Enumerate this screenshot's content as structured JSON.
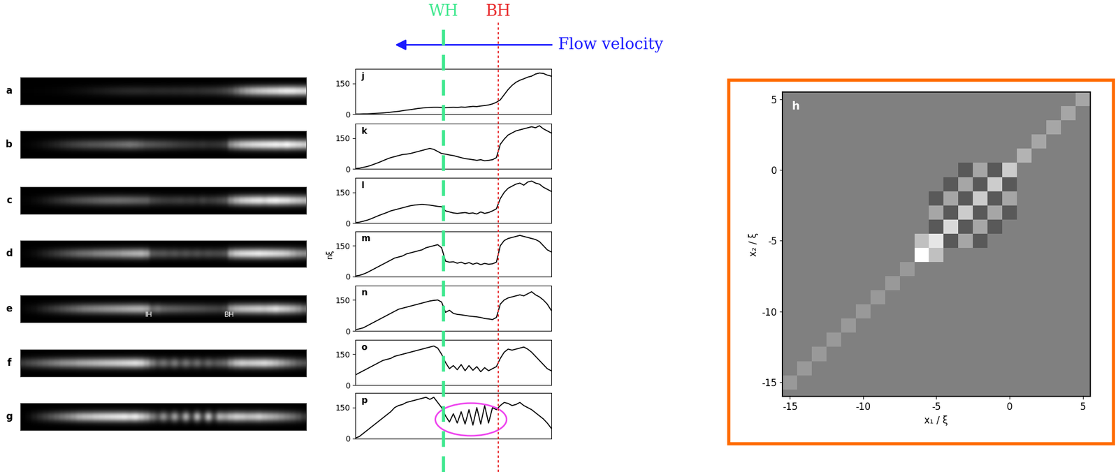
{
  "horizons": [
    {
      "text": "WH",
      "x": 45,
      "color": "#3ee88e",
      "line_style": "dashed"
    },
    {
      "text": "BH",
      "x": 73,
      "color": "#e8282a",
      "line_style": "dotted"
    }
  ],
  "flow": {
    "text": "Flow velocity",
    "color": "#1a1aff"
  },
  "images": {
    "labels": [
      "a",
      "b",
      "c",
      "d",
      "e",
      "f",
      "g"
    ],
    "notes_panel": "e",
    "notes": [
      "IH",
      "BH"
    ]
  },
  "highlight": {
    "panel": "p",
    "color": "#ee44ee"
  },
  "chart_data": [
    {
      "type": "line",
      "title": "j",
      "color": "#000000",
      "tick_labels": "y",
      "x": [
        0,
        2,
        4,
        6,
        8,
        10,
        12,
        14,
        16,
        18,
        20,
        22,
        24,
        26,
        28,
        30,
        32,
        34,
        36,
        38,
        40,
        42,
        44,
        46,
        48,
        50,
        52,
        54,
        56,
        58,
        60,
        62,
        64,
        66,
        68,
        70,
        72,
        74,
        76,
        78,
        80,
        82,
        84,
        86,
        88,
        90,
        92,
        94,
        96,
        98,
        100
      ],
      "values": [
        1,
        1,
        2,
        2,
        3,
        4,
        5,
        6,
        8,
        10,
        12,
        14,
        17,
        20,
        22,
        25,
        28,
        30,
        32,
        33,
        34,
        34,
        33,
        32,
        33,
        34,
        33,
        35,
        34,
        36,
        38,
        37,
        40,
        42,
        45,
        50,
        58,
        70,
        95,
        120,
        140,
        155,
        165,
        172,
        180,
        185,
        195,
        200,
        198,
        190,
        185
      ],
      "xlim": [
        0,
        100
      ],
      "ylim": [
        0,
        220
      ],
      "yticks": [
        0,
        150
      ]
    },
    {
      "type": "line",
      "title": "k",
      "color": "#000000",
      "tick_labels": "y",
      "x": [
        0,
        2,
        4,
        6,
        8,
        10,
        12,
        14,
        16,
        18,
        20,
        22,
        24,
        26,
        28,
        30,
        32,
        34,
        36,
        38,
        40,
        42,
        44,
        46,
        48,
        50,
        52,
        54,
        56,
        58,
        60,
        62,
        64,
        66,
        68,
        70,
        72,
        74,
        76,
        78,
        80,
        82,
        84,
        86,
        88,
        90,
        92,
        94,
        96,
        98,
        100
      ],
      "values": [
        2,
        4,
        8,
        12,
        18,
        25,
        32,
        40,
        48,
        55,
        60,
        65,
        70,
        72,
        75,
        80,
        85,
        90,
        95,
        100,
        95,
        85,
        75,
        72,
        68,
        65,
        60,
        55,
        50,
        48,
        45,
        42,
        45,
        40,
        42,
        45,
        55,
        120,
        145,
        165,
        175,
        185,
        190,
        195,
        200,
        205,
        200,
        210,
        195,
        185,
        175
      ],
      "xlim": [
        0,
        100
      ],
      "ylim": [
        0,
        220
      ],
      "yticks": [
        0,
        150
      ]
    },
    {
      "type": "line",
      "title": "l",
      "color": "#000000",
      "tick_labels": "y",
      "x": [
        0,
        2,
        4,
        6,
        8,
        10,
        12,
        14,
        16,
        18,
        20,
        22,
        24,
        26,
        28,
        30,
        32,
        34,
        36,
        38,
        40,
        42,
        44,
        46,
        48,
        50,
        52,
        54,
        56,
        58,
        60,
        62,
        64,
        66,
        68,
        70,
        72,
        74,
        76,
        78,
        80,
        82,
        84,
        86,
        88,
        90,
        92,
        94,
        96,
        98,
        100
      ],
      "values": [
        3,
        5,
        10,
        15,
        22,
        30,
        38,
        45,
        52,
        60,
        65,
        70,
        75,
        80,
        85,
        88,
        90,
        92,
        90,
        88,
        85,
        82,
        80,
        60,
        55,
        50,
        48,
        50,
        52,
        48,
        50,
        45,
        55,
        48,
        52,
        60,
        70,
        120,
        150,
        170,
        180,
        190,
        195,
        185,
        200,
        205,
        195,
        190,
        175,
        165,
        155
      ],
      "xlim": [
        0,
        100
      ],
      "ylim": [
        0,
        220
      ],
      "yticks": [
        0,
        150
      ]
    },
    {
      "type": "line",
      "title": "m",
      "color": "#000000",
      "tick_labels": "y",
      "y_label": "nξ",
      "x": [
        0,
        2,
        4,
        6,
        8,
        10,
        12,
        14,
        16,
        18,
        20,
        22,
        24,
        26,
        28,
        30,
        32,
        34,
        36,
        38,
        40,
        42,
        44,
        46,
        48,
        50,
        52,
        54,
        56,
        58,
        60,
        62,
        64,
        66,
        68,
        70,
        72,
        74,
        76,
        78,
        80,
        82,
        84,
        86,
        88,
        90,
        92,
        94,
        96,
        98,
        100
      ],
      "values": [
        3,
        6,
        12,
        20,
        30,
        40,
        50,
        60,
        70,
        80,
        90,
        95,
        100,
        110,
        115,
        120,
        125,
        130,
        140,
        145,
        150,
        155,
        140,
        75,
        70,
        72,
        65,
        70,
        62,
        68,
        60,
        66,
        58,
        64,
        60,
        62,
        70,
        150,
        175,
        185,
        190,
        195,
        200,
        195,
        190,
        185,
        180,
        170,
        150,
        130,
        120
      ],
      "xlim": [
        0,
        100
      ],
      "ylim": [
        0,
        220
      ],
      "yticks": [
        0,
        150
      ]
    },
    {
      "type": "line",
      "title": "n",
      "color": "#000000",
      "tick_labels": "y",
      "x": [
        0,
        2,
        4,
        6,
        8,
        10,
        12,
        14,
        16,
        18,
        20,
        22,
        24,
        26,
        28,
        30,
        32,
        34,
        36,
        38,
        40,
        42,
        44,
        46,
        48,
        50,
        52,
        54,
        56,
        58,
        60,
        62,
        64,
        66,
        68,
        70,
        72,
        74,
        76,
        78,
        80,
        82,
        84,
        86,
        88,
        90,
        92,
        94,
        96,
        98,
        100
      ],
      "values": [
        5,
        10,
        15,
        25,
        35,
        45,
        55,
        65,
        75,
        85,
        95,
        105,
        110,
        115,
        120,
        125,
        130,
        135,
        140,
        145,
        148,
        150,
        140,
        90,
        100,
        85,
        80,
        78,
        75,
        72,
        70,
        68,
        65,
        60,
        58,
        55,
        65,
        130,
        150,
        160,
        165,
        170,
        175,
        170,
        180,
        190,
        175,
        165,
        150,
        130,
        100
      ],
      "xlim": [
        0,
        100
      ],
      "ylim": [
        0,
        220
      ],
      "yticks": [
        0,
        150
      ]
    },
    {
      "type": "line",
      "title": "o",
      "color": "#000000",
      "tick_labels": "y",
      "x": [
        0,
        2,
        4,
        6,
        8,
        10,
        12,
        14,
        16,
        18,
        20,
        22,
        24,
        26,
        28,
        30,
        32,
        34,
        36,
        38,
        40,
        42,
        44,
        46,
        48,
        50,
        52,
        54,
        56,
        58,
        60,
        62,
        64,
        66,
        68,
        70,
        72,
        74,
        76,
        78,
        80,
        82,
        84,
        86,
        88,
        90,
        92,
        94,
        96,
        98,
        100
      ],
      "values": [
        50,
        60,
        70,
        80,
        90,
        100,
        110,
        120,
        125,
        130,
        140,
        145,
        150,
        155,
        160,
        165,
        170,
        175,
        180,
        185,
        190,
        180,
        150,
        110,
        80,
        95,
        75,
        100,
        70,
        95,
        72,
        90,
        65,
        85,
        70,
        80,
        90,
        130,
        160,
        175,
        170,
        175,
        180,
        185,
        175,
        160,
        140,
        120,
        100,
        80,
        70
      ],
      "xlim": [
        0,
        100
      ],
      "ylim": [
        0,
        220
      ],
      "yticks": [
        0,
        150
      ]
    },
    {
      "type": "line",
      "title": "p",
      "color": "#000000",
      "tick_labels": "y",
      "x": [
        0,
        2,
        4,
        6,
        8,
        10,
        12,
        14,
        16,
        18,
        20,
        22,
        24,
        26,
        28,
        30,
        32,
        34,
        36,
        38,
        40,
        42,
        44,
        46,
        48,
        50,
        52,
        54,
        56,
        58,
        60,
        62,
        64,
        66,
        68,
        70,
        72,
        74,
        76,
        78,
        80,
        82,
        84,
        86,
        88,
        90,
        92,
        94,
        96,
        98,
        100
      ],
      "values": [
        2,
        10,
        25,
        40,
        55,
        70,
        85,
        100,
        115,
        130,
        150,
        160,
        165,
        175,
        180,
        185,
        190,
        195,
        200,
        190,
        200,
        175,
        150,
        110,
        80,
        120,
        75,
        130,
        70,
        140,
        65,
        150,
        70,
        160,
        75,
        150,
        140,
        160,
        175,
        170,
        160,
        165,
        175,
        160,
        150,
        140,
        125,
        110,
        95,
        75,
        50
      ],
      "xlim": [
        0,
        100
      ],
      "ylim": [
        0,
        220
      ],
      "yticks": [
        0,
        150
      ]
    },
    {
      "type": "heatmap",
      "title": "h",
      "x_label": "x₁ / ξ",
      "y_label": "x₂ / ξ",
      "x": [
        -15,
        -14,
        -13,
        -12,
        -11,
        -10,
        -9,
        -8,
        -7,
        -6,
        -5,
        -4,
        -3,
        -2,
        -1,
        0,
        1,
        2,
        3,
        4,
        5
      ],
      "y": [
        5,
        4,
        3,
        2,
        1,
        0,
        -1,
        -2,
        -3,
        -4,
        -5,
        -6,
        -7,
        -8,
        -9,
        -10,
        -11,
        -12,
        -13,
        -14,
        -15
      ],
      "cells": [
        [
          0,
          0,
          0,
          0,
          0,
          0,
          0,
          0,
          0,
          0,
          0,
          0,
          0,
          0,
          0,
          0,
          0,
          0,
          0,
          0,
          0.3
        ],
        [
          0,
          0,
          0,
          0,
          0,
          0,
          0,
          0,
          0,
          0,
          0,
          0,
          0,
          0,
          0,
          0,
          0,
          0,
          0,
          0.3,
          0
        ],
        [
          0,
          0,
          0,
          0,
          0,
          0,
          0,
          0,
          0,
          0,
          0,
          0,
          0,
          0,
          0,
          0,
          0,
          0,
          0.3,
          0,
          0
        ],
        [
          0,
          0,
          0,
          0,
          0,
          0,
          0,
          0,
          0,
          0,
          0,
          0,
          0,
          0,
          0,
          0,
          0,
          0.3,
          0,
          0,
          0
        ],
        [
          0,
          0,
          0,
          0,
          0,
          0,
          0,
          0,
          0,
          0,
          0,
          0,
          0,
          0,
          0,
          0,
          0.4,
          0,
          0,
          0,
          0
        ],
        [
          0,
          0,
          0,
          0,
          0,
          0,
          0,
          0,
          0,
          0,
          0,
          0,
          -0.3,
          0.3,
          -0.3,
          0.6,
          0,
          0,
          0,
          0,
          0
        ],
        [
          0,
          0,
          0,
          0,
          0,
          0,
          0,
          0,
          0,
          0,
          0,
          -0.3,
          0.3,
          -0.3,
          0.6,
          -0.3,
          0,
          0,
          0,
          0,
          0
        ],
        [
          0,
          0,
          0,
          0,
          0,
          0,
          0,
          0,
          0,
          0,
          -0.3,
          0.3,
          -0.3,
          0.6,
          -0.3,
          0.3,
          0,
          0,
          0,
          0,
          0
        ],
        [
          0,
          0,
          0,
          0,
          0,
          0,
          0,
          0,
          0,
          0,
          0.3,
          -0.3,
          0.6,
          -0.3,
          0.3,
          -0.3,
          0,
          0,
          0,
          0,
          0
        ],
        [
          0,
          0,
          0,
          0,
          0,
          0,
          0,
          0,
          0,
          0,
          -0.3,
          0.7,
          -0.3,
          0.3,
          -0.3,
          0,
          0,
          0,
          0,
          0,
          0
        ],
        [
          0,
          0,
          0,
          0,
          0,
          0,
          0,
          0,
          0,
          0.5,
          0.8,
          -0.3,
          0.3,
          -0.3,
          0,
          0,
          0,
          0,
          0,
          0,
          0
        ],
        [
          0,
          0,
          0,
          0,
          0,
          0,
          0,
          0,
          0,
          1.0,
          0.5,
          0,
          0,
          0,
          0,
          0,
          0,
          0,
          0,
          0,
          0
        ],
        [
          0,
          0,
          0,
          0,
          0,
          0,
          0,
          0,
          0.2,
          0,
          0,
          0,
          0,
          0,
          0,
          0,
          0,
          0,
          0,
          0,
          0
        ],
        [
          0,
          0,
          0,
          0,
          0,
          0,
          0,
          0.2,
          0,
          0,
          0,
          0,
          0,
          0,
          0,
          0,
          0,
          0,
          0,
          0,
          0
        ],
        [
          0,
          0,
          0,
          0,
          0,
          0,
          0.2,
          0,
          0,
          0,
          0,
          0,
          0,
          0,
          0,
          0,
          0,
          0,
          0,
          0,
          0
        ],
        [
          0,
          0,
          0,
          0,
          0,
          0.2,
          0,
          0,
          0,
          0,
          0,
          0,
          0,
          0,
          0,
          0,
          0,
          0,
          0,
          0,
          0
        ],
        [
          0,
          0,
          0,
          0,
          0.2,
          0,
          0,
          0,
          0,
          0,
          0,
          0,
          0,
          0,
          0,
          0,
          0,
          0,
          0,
          0,
          0
        ],
        [
          0,
          0,
          0,
          0.2,
          0,
          0,
          0,
          0,
          0,
          0,
          0,
          0,
          0,
          0,
          0,
          0,
          0,
          0,
          0,
          0,
          0
        ],
        [
          0,
          0,
          0.2,
          0,
          0,
          0,
          0,
          0,
          0,
          0,
          0,
          0,
          0,
          0,
          0,
          0,
          0,
          0,
          0,
          0,
          0
        ],
        [
          0,
          0.2,
          0,
          0,
          0,
          0,
          0,
          0,
          0,
          0,
          0,
          0,
          0,
          0,
          0,
          0,
          0,
          0,
          0,
          0,
          0
        ],
        [
          0.2,
          0,
          0,
          0,
          0,
          0,
          0,
          0,
          0,
          0,
          0,
          0,
          0,
          0,
          0,
          0,
          0,
          0,
          0,
          0,
          0
        ]
      ],
      "xlim": [
        -15.5,
        5.5
      ],
      "ylim": [
        -16,
        5.5
      ],
      "xticks": [
        -15,
        -10,
        -5,
        0,
        5
      ],
      "yticks": [
        -15,
        -10,
        -5,
        0,
        5
      ]
    }
  ]
}
